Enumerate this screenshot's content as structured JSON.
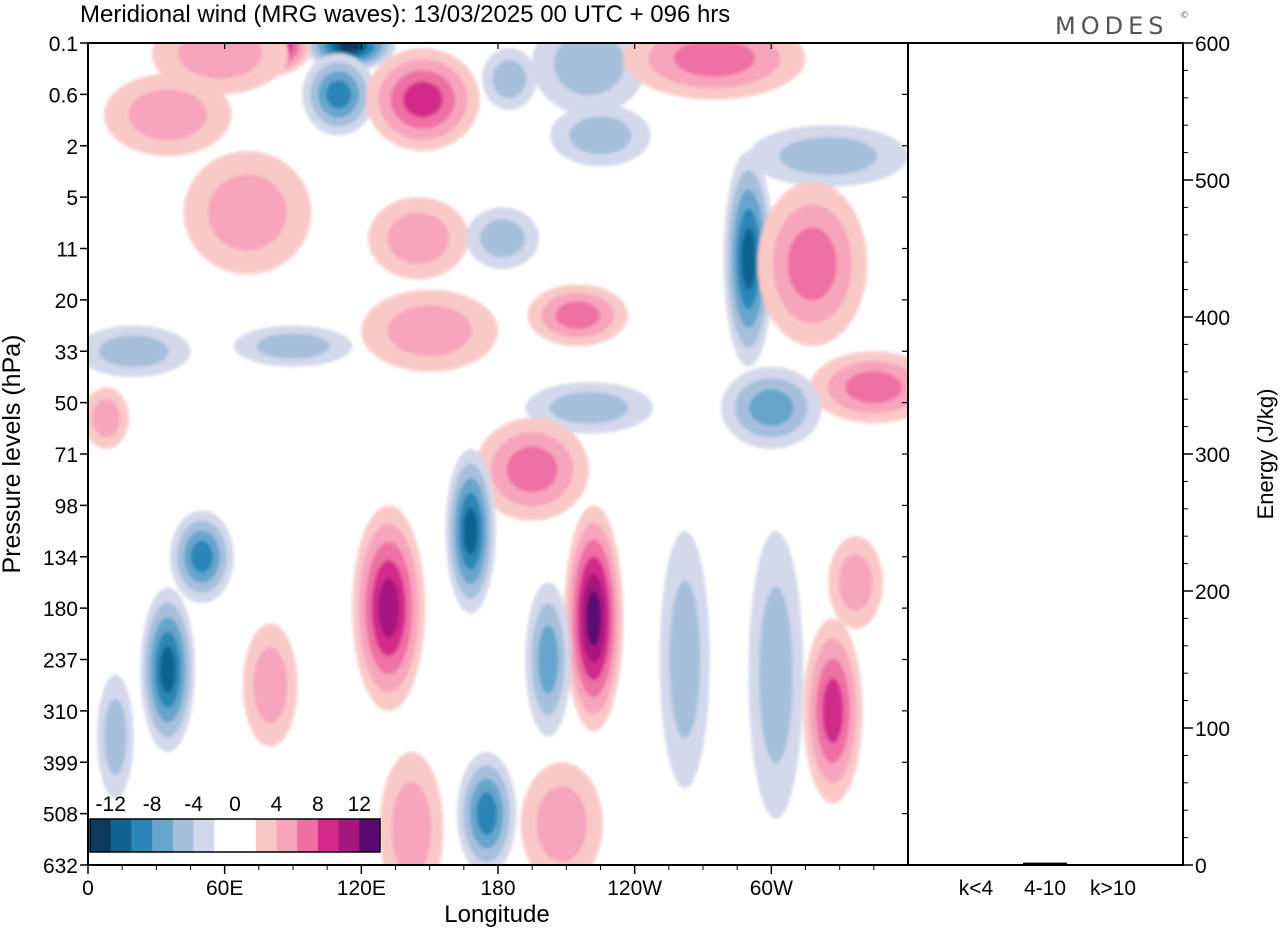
{
  "chart_data": [
    {
      "type": "heatmap",
      "title": "Meridional wind (MRG waves):  13/03/2025  00 UTC  + 096 hrs",
      "xlabel": "Longitude",
      "ylabel": "Pressure levels (hPa)",
      "x_ticks": [
        {
          "lon": 0,
          "label": "0"
        },
        {
          "lon": 60,
          "label": "60E"
        },
        {
          "lon": 120,
          "label": "120E"
        },
        {
          "lon": 180,
          "label": "180"
        },
        {
          "lon": 240,
          "label": "120W"
        },
        {
          "lon": 300,
          "label": "60W"
        }
      ],
      "xlim": [
        0,
        360
      ],
      "y_levels": [
        "0.1",
        "0.6",
        "2",
        "5",
        "11",
        "20",
        "33",
        "50",
        "71",
        "98",
        "134",
        "180",
        "237",
        "310",
        "399",
        "508",
        "632"
      ],
      "colorbar": {
        "tick_labels": [
          "-12",
          "-8",
          "-4",
          "0",
          "4",
          "8",
          "12"
        ],
        "colors": [
          "#0d3a5e",
          "#11648f",
          "#2a86b7",
          "#68a5cd",
          "#a6c0dc",
          "#d3d8ea",
          "#ffffff",
          "#ffffff",
          "#f9c9c7",
          "#f7a4bd",
          "#ef6fa3",
          "#d12a8b",
          "#a6177e",
          "#5a0a6f"
        ]
      },
      "blobs_desc": "wave packets of positive (pink) and negative (blue) meridional wind",
      "blobs": [
        {
          "lon": 115,
          "lev": 0.05,
          "rx": 20,
          "ry": 0.5,
          "v": -13
        },
        {
          "lon": 80,
          "lev": 0.05,
          "rx": 18,
          "ry": 0.6,
          "v": 11
        },
        {
          "lon": 58,
          "lev": 0.2,
          "rx": 30,
          "ry": 0.8,
          "v": 4
        },
        {
          "lon": 110,
          "lev": 1.0,
          "rx": 16,
          "ry": 0.8,
          "v": -8
        },
        {
          "lon": 147,
          "lev": 1.1,
          "rx": 25,
          "ry": 1.0,
          "v": 8
        },
        {
          "lon": 35,
          "lev": 1.4,
          "rx": 28,
          "ry": 0.8,
          "v": 4
        },
        {
          "lon": 185,
          "lev": 0.7,
          "rx": 12,
          "ry": 0.6,
          "v": -4
        },
        {
          "lon": 220,
          "lev": 0.4,
          "rx": 25,
          "ry": 1.0,
          "v": -3
        },
        {
          "lon": 225,
          "lev": 1.8,
          "rx": 22,
          "ry": 0.6,
          "v": -4
        },
        {
          "lon": 275,
          "lev": 0.3,
          "rx": 40,
          "ry": 0.8,
          "v": 6
        },
        {
          "lon": 325,
          "lev": 2.2,
          "rx": 35,
          "ry": 0.6,
          "v": -4
        },
        {
          "lon": 70,
          "lev": 3.3,
          "rx": 28,
          "ry": 1.2,
          "v": 3
        },
        {
          "lon": 290,
          "lev": 4.2,
          "rx": 11,
          "ry": 2.1,
          "v": -10
        },
        {
          "lon": 318,
          "lev": 4.3,
          "rx": 24,
          "ry": 1.6,
          "v": 6
        },
        {
          "lon": 145,
          "lev": 3.8,
          "rx": 22,
          "ry": 0.8,
          "v": 4
        },
        {
          "lon": 182,
          "lev": 3.8,
          "rx": 16,
          "ry": 0.6,
          "v": -3
        },
        {
          "lon": 215,
          "lev": 5.3,
          "rx": 22,
          "ry": 0.6,
          "v": 5
        },
        {
          "lon": 150,
          "lev": 5.6,
          "rx": 30,
          "ry": 0.8,
          "v": 3
        },
        {
          "lon": 90,
          "lev": 5.9,
          "rx": 26,
          "ry": 0.4,
          "v": -3
        },
        {
          "lon": 20,
          "lev": 6.0,
          "rx": 25,
          "ry": 0.5,
          "v": -3
        },
        {
          "lon": 345,
          "lev": 6.7,
          "rx": 28,
          "ry": 0.7,
          "v": 6
        },
        {
          "lon": 300,
          "lev": 7.1,
          "rx": 22,
          "ry": 0.8,
          "v": -5
        },
        {
          "lon": 220,
          "lev": 7.1,
          "rx": 28,
          "ry": 0.5,
          "v": -3
        },
        {
          "lon": 8,
          "lev": 7.3,
          "rx": 10,
          "ry": 0.6,
          "v": 4
        },
        {
          "lon": 195,
          "lev": 8.3,
          "rx": 25,
          "ry": 1.0,
          "v": 5
        },
        {
          "lon": 168,
          "lev": 9.5,
          "rx": 11,
          "ry": 1.6,
          "v": -9
        },
        {
          "lon": 132,
          "lev": 11.0,
          "rx": 16,
          "ry": 2.0,
          "v": 10
        },
        {
          "lon": 222,
          "lev": 11.2,
          "rx": 13,
          "ry": 2.2,
          "v": 12
        },
        {
          "lon": 50,
          "lev": 10.0,
          "rx": 14,
          "ry": 0.9,
          "v": -8
        },
        {
          "lon": 35,
          "lev": 12.2,
          "rx": 12,
          "ry": 1.6,
          "v": -9
        },
        {
          "lon": 202,
          "lev": 12.0,
          "rx": 10,
          "ry": 1.5,
          "v": -6
        },
        {
          "lon": 302,
          "lev": 12.3,
          "rx": 12,
          "ry": 2.8,
          "v": -4
        },
        {
          "lon": 327,
          "lev": 13.0,
          "rx": 13,
          "ry": 1.8,
          "v": 8
        },
        {
          "lon": 337,
          "lev": 10.5,
          "rx": 12,
          "ry": 0.9,
          "v": 3
        },
        {
          "lon": 262,
          "lev": 12.0,
          "rx": 11,
          "ry": 2.5,
          "v": -4
        },
        {
          "lon": 175,
          "lev": 15.0,
          "rx": 13,
          "ry": 1.2,
          "v": -7
        },
        {
          "lon": 208,
          "lev": 15.2,
          "rx": 18,
          "ry": 1.2,
          "v": 4
        },
        {
          "lon": 80,
          "lev": 12.5,
          "rx": 12,
          "ry": 1.2,
          "v": 3
        },
        {
          "lon": 142,
          "lev": 15.3,
          "rx": 14,
          "ry": 1.5,
          "v": 3
        },
        {
          "lon": 12,
          "lev": 13.5,
          "rx": 8,
          "ry": 1.2,
          "v": -3
        }
      ]
    },
    {
      "type": "bar",
      "ylabel": "Energy (J/kg)",
      "ylim": [
        0,
        600
      ],
      "y_ticks": [
        "0",
        "100",
        "200",
        "300",
        "400",
        "500",
        "600"
      ],
      "categories": [
        "k<4",
        "4-10",
        "k>10"
      ],
      "values": [
        0,
        1,
        0
      ]
    }
  ],
  "brand": "MODES",
  "brand_mark": "©"
}
